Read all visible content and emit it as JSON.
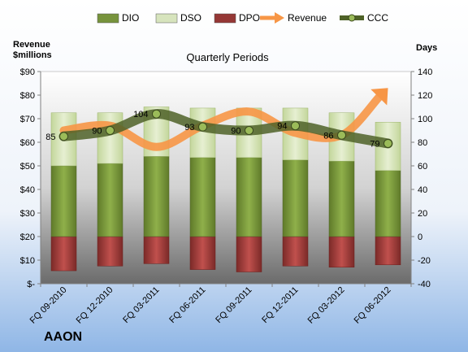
{
  "chart_data": {
    "type": "bar",
    "title": "AAON",
    "subtitle": "Quarterly Periods",
    "ylabel_left": "Revenue\n$millions",
    "ylabel_right": "Days",
    "categories": [
      "FQ 09-2010",
      "FQ 12-2010",
      "FQ 03-2011",
      "FQ 06-2011",
      "FQ 09-2011",
      "FQ 12-2011",
      "FQ 03-2012",
      "FQ 06-2012"
    ],
    "left_axis": {
      "min": 0,
      "max": 90,
      "step": 10,
      "ticks": [
        "$-",
        "$10",
        "$20",
        "$30",
        "$40",
        "$50",
        "$60",
        "$70",
        "$80",
        "$90"
      ]
    },
    "right_axis": {
      "min": -40,
      "max": 140,
      "step": 20,
      "ticks": [
        "-40",
        "-20",
        "0",
        "20",
        "40",
        "60",
        "80",
        "100",
        "120",
        "140"
      ]
    },
    "legend": [
      {
        "name": "DIO",
        "kind": "bar",
        "color": "#77933c"
      },
      {
        "name": "DSO",
        "kind": "bar",
        "color": "#d7e4bd"
      },
      {
        "name": "DPO",
        "kind": "bar",
        "color": "#953735"
      },
      {
        "name": "Revenue",
        "kind": "arrow",
        "color": "#f79646"
      },
      {
        "name": "CCC",
        "kind": "line",
        "color": "#4f6228"
      }
    ],
    "series": [
      {
        "name": "DIO",
        "axis": "right",
        "values": [
          60,
          62,
          68,
          67,
          67,
          65,
          64,
          56
        ]
      },
      {
        "name": "DSO",
        "axis": "right",
        "values": [
          45,
          43,
          42,
          42,
          42,
          44,
          41,
          41
        ]
      },
      {
        "name": "DPO",
        "axis": "right",
        "values": [
          -29,
          -25,
          -23,
          -28,
          -30,
          -25,
          -26,
          -24
        ]
      },
      {
        "name": "Revenue",
        "axis": "left",
        "values": [
          65,
          67,
          58,
          67,
          73,
          64,
          63,
          83
        ]
      },
      {
        "name": "CCC",
        "axis": "right",
        "values": [
          85,
          90,
          104,
          93,
          90,
          94,
          86,
          79
        ]
      }
    ],
    "ccc_labels": [
      "85",
      "90",
      "104",
      "93",
      "90",
      "94",
      "86",
      "79"
    ],
    "legend_position": "top",
    "grid": false
  }
}
